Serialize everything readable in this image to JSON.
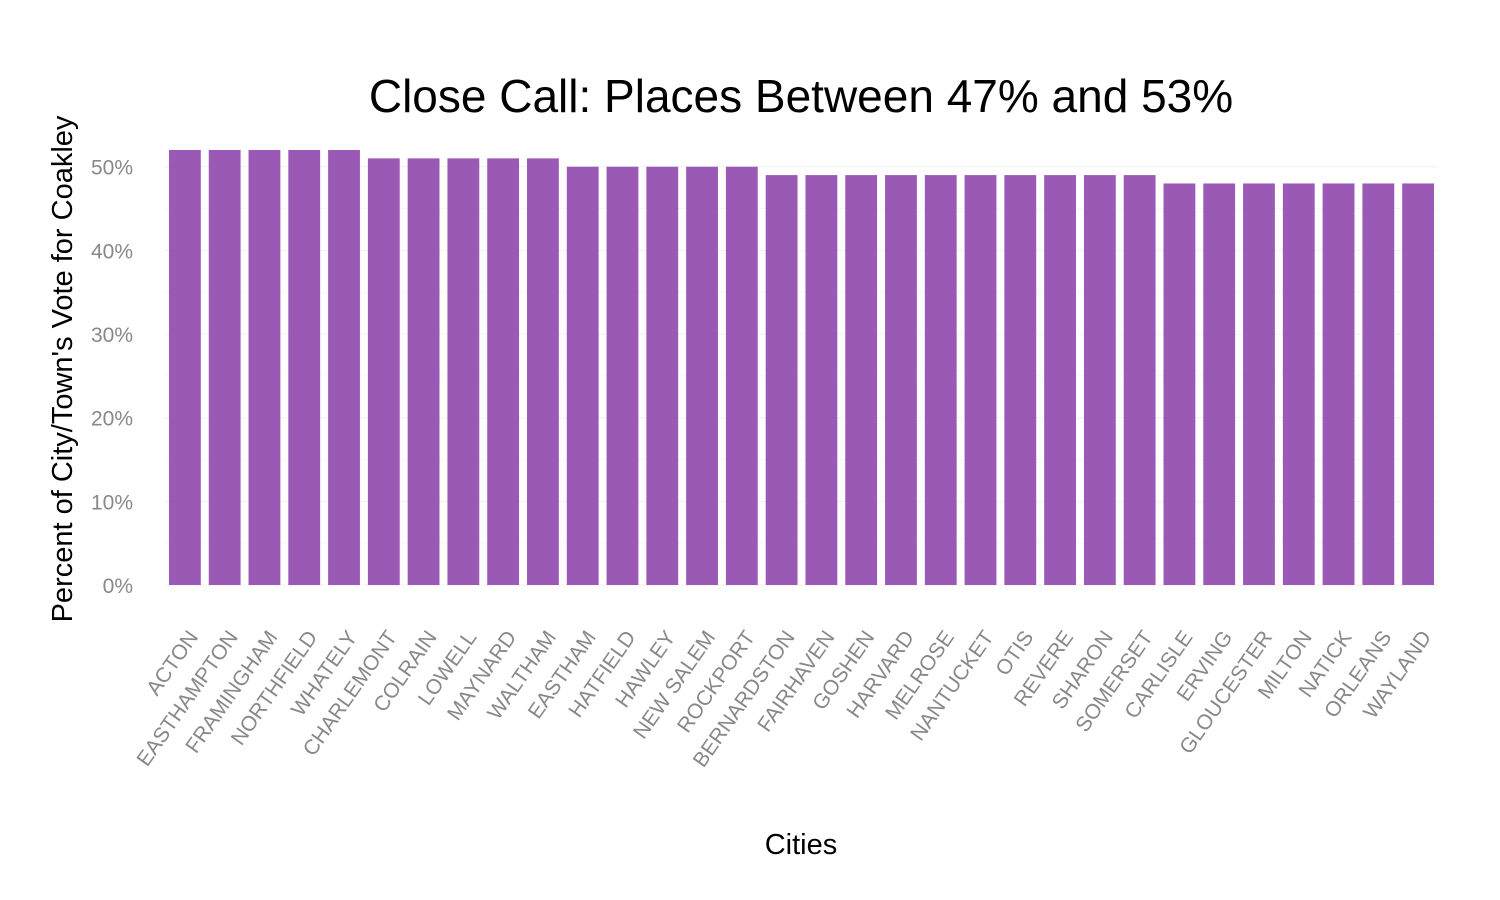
{
  "chart_data": {
    "type": "bar",
    "title": "Close Call: Places Between 47% and 53%",
    "xlabel": "Cities",
    "ylabel": "Percent of City/Town's Vote for Coakley",
    "categories": [
      "ACTON",
      "EASTHAMPTON",
      "FRAMINGHAM",
      "NORTHFIELD",
      "WHATELY",
      "CHARLEMONT",
      "COLRAIN",
      "LOWELL",
      "MAYNARD",
      "WALTHAM",
      "EASTHAM",
      "HATFIELD",
      "HAWLEY",
      "NEW SALEM",
      "ROCKPORT",
      "BERNARDSTON",
      "FAIRHAVEN",
      "GOSHEN",
      "HARVARD",
      "MELROSE",
      "NANTUCKET",
      "OTIS",
      "REVERE",
      "SHARON",
      "SOMERSET",
      "CARLISLE",
      "ERVING",
      "GLOUCESTER",
      "MILTON",
      "NATICK",
      "ORLEANS",
      "WAYLAND"
    ],
    "values": [
      0.52,
      0.52,
      0.52,
      0.52,
      0.52,
      0.51,
      0.51,
      0.51,
      0.51,
      0.51,
      0.5,
      0.5,
      0.5,
      0.5,
      0.5,
      0.49,
      0.49,
      0.49,
      0.49,
      0.49,
      0.49,
      0.49,
      0.49,
      0.49,
      0.49,
      0.48,
      0.48,
      0.48,
      0.48,
      0.48,
      0.48,
      0.48
    ],
    "ylim": [
      0,
      0.52
    ],
    "yticks": [
      0,
      0.1,
      0.2,
      0.3,
      0.4,
      0.5
    ],
    "ytick_labels": [
      "0%",
      "10%",
      "20%",
      "30%",
      "40%",
      "50%"
    ],
    "bar_color": "#9b59b6",
    "grid": true,
    "legend": "none"
  }
}
